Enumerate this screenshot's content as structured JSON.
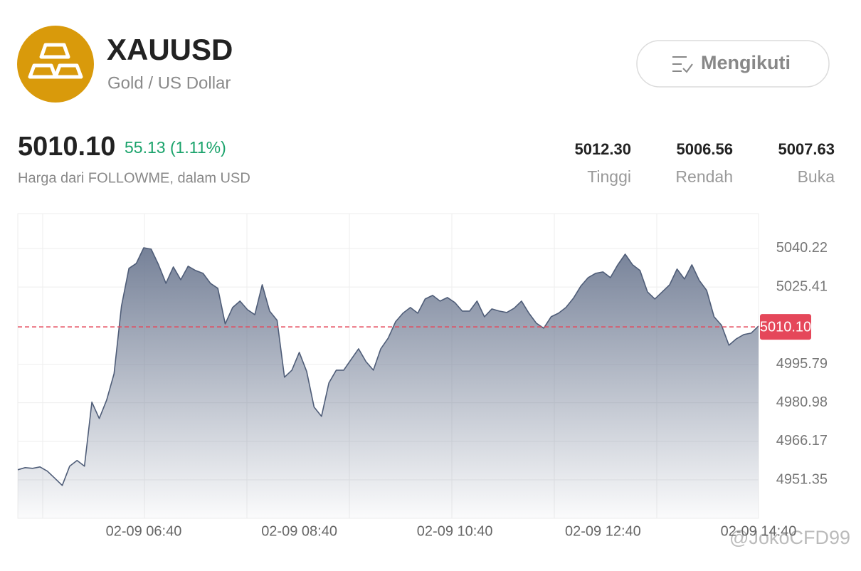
{
  "header": {
    "symbol": "XAUUSD",
    "name": "Gold / US Dollar",
    "follow_button": "Mengikuti"
  },
  "quote": {
    "price": "5010.10",
    "change": "55.13 (1.11%)",
    "source": "Harga dari FOLLOWME, dalam USD"
  },
  "stats": [
    {
      "value": "5012.30",
      "label": "Tinggi"
    },
    {
      "value": "5006.56",
      "label": "Rendah"
    },
    {
      "value": "5007.63",
      "label": "Buka"
    }
  ],
  "chart_data": {
    "type": "area",
    "color": "#4f5d78",
    "categories": [
      null,
      null,
      null,
      null,
      null,
      null,
      null,
      null,
      null,
      null,
      null,
      null,
      null,
      null,
      null,
      null,
      null,
      "02-09 06:40",
      null,
      null,
      null,
      null,
      null,
      null,
      null,
      null,
      null,
      null,
      null,
      null,
      null,
      null,
      null,
      null,
      null,
      null,
      null,
      null,
      "02-09 08:40",
      null,
      null,
      null,
      null,
      null,
      null,
      null,
      null,
      null,
      null,
      null,
      null,
      null,
      null,
      null,
      null,
      null,
      null,
      null,
      null,
      "02-09 10:40",
      null,
      null,
      null,
      null,
      null,
      null,
      null,
      null,
      null,
      null,
      null,
      null,
      null,
      null,
      null,
      null,
      null,
      null,
      null,
      "02-09 12:40",
      null,
      null,
      null,
      null,
      null,
      null,
      null,
      null,
      null,
      null,
      null,
      null,
      null,
      null,
      null,
      null,
      null,
      null,
      null,
      null,
      "02-09 14:40"
    ],
    "values": [
      4955.25,
      4956.07,
      4955.8,
      4956.35,
      4954.71,
      4951.98,
      4949.24,
      4956.62,
      4958.81,
      4956.62,
      4981.21,
      4974.93,
      4982.03,
      4992.14,
      5018.09,
      5032.57,
      5034.48,
      5040.49,
      5039.95,
      5033.94,
      5026.83,
      5033.12,
      5028.2,
      5033.39,
      5031.75,
      5030.66,
      5026.83,
      5024.92,
      5011.26,
      5017.54,
      5020.0,
      5016.72,
      5014.81,
      5026.29,
      5016.18,
      5012.63,
      4990.77,
      4993.5,
      5000.33,
      4992.96,
      4979.3,
      4975.74,
      4988.59,
      4993.5,
      4993.5,
      4997.6,
      5001.7,
      4996.78,
      4993.5,
      5001.7,
      5005.8,
      5012.08,
      5015.36,
      5017.54,
      5015.36,
      5020.82,
      5022.19,
      5020.0,
      5021.37,
      5019.46,
      5016.18,
      5016.18,
      5020.0,
      5013.99,
      5017.0,
      5016.18,
      5015.63,
      5017.27,
      5020.0,
      5015.36,
      5011.53,
      5009.62,
      5013.99,
      5015.36,
      5017.54,
      5021.1,
      5025.74,
      5029.02,
      5030.66,
      5031.2,
      5029.02,
      5033.94,
      5038.03,
      5033.94,
      5031.75,
      5023.55,
      5020.82,
      5023.55,
      5026.29,
      5032.3,
      5028.47,
      5033.94,
      5027.93,
      5024.1,
      5013.99,
      5010.71,
      5003.06,
      5005.52,
      5007.16,
      5007.71,
      5010.44
    ],
    "ylim": [
      4936.6,
      5053.6
    ],
    "yticks": [
      5040.22,
      5025.41,
      4995.79,
      4980.98,
      4966.17,
      4951.35
    ],
    "current_price": {
      "value": 5010.1,
      "label": "5010.10"
    },
    "current_price_color": "#e5475a",
    "grid": true
  },
  "watermark": "@JokoCFD99"
}
